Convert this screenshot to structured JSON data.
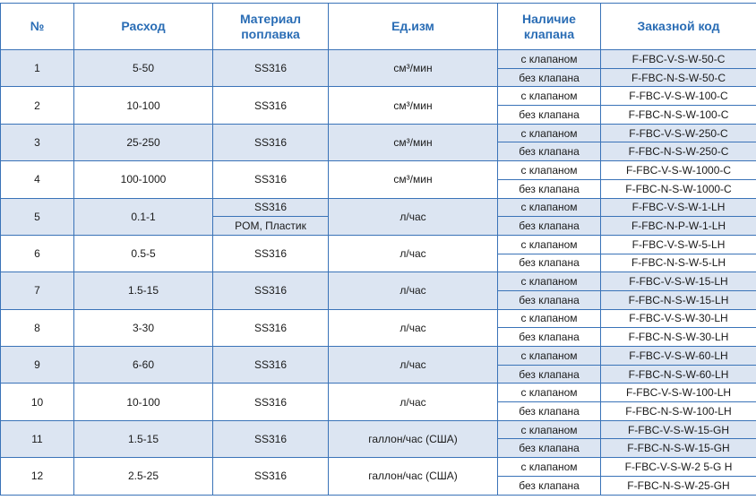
{
  "table": {
    "header": [
      "№",
      "Расход",
      "Материал поплавка",
      "Ед.изм",
      "Наличие клапана",
      "Заказной код"
    ],
    "rows": [
      {
        "no": "1",
        "flow": "5-50",
        "material": [
          "SS316"
        ],
        "unit": "см³/мин",
        "options": [
          {
            "valve": "с клапаном",
            "code": "F-FBC-V-S-W-50-C"
          },
          {
            "valve": "без клапана",
            "code": "F-FBC-N-S-W-50-C"
          }
        ]
      },
      {
        "no": "2",
        "flow": "10-100",
        "material": [
          "SS316"
        ],
        "unit": "см³/мин",
        "options": [
          {
            "valve": "с клапаном",
            "code": "F-FBC-V-S-W-100-C"
          },
          {
            "valve": "без клапана",
            "code": "F-FBC-N-S-W-100-C"
          }
        ]
      },
      {
        "no": "3",
        "flow": "25-250",
        "material": [
          "SS316"
        ],
        "unit": "см³/мин",
        "options": [
          {
            "valve": "с клапаном",
            "code": "F-FBC-V-S-W-250-C"
          },
          {
            "valve": "без клапана",
            "code": "F-FBC-N-S-W-250-C"
          }
        ]
      },
      {
        "no": "4",
        "flow": "100-1000",
        "material": [
          "SS316"
        ],
        "unit": "см³/мин",
        "options": [
          {
            "valve": "с клапаном",
            "code": "F-FBC-V-S-W-1000-C"
          },
          {
            "valve": "без клапана",
            "code": "F-FBC-N-S-W-1000-C"
          }
        ]
      },
      {
        "no": "5",
        "flow": "0.1-1",
        "material": [
          "SS316",
          "POM, Пластик"
        ],
        "unit": "л/час",
        "options": [
          {
            "valve": "с клапаном",
            "code": "F-FBC-V-S-W-1-LH"
          },
          {
            "valve": "без клапана",
            "code": "F-FBC-N-P-W-1-LH"
          }
        ]
      },
      {
        "no": "6",
        "flow": "0.5-5",
        "material": [
          "SS316"
        ],
        "unit": "л/час",
        "options": [
          {
            "valve": "с клапаном",
            "code": "F-FBC-V-S-W-5-LH"
          },
          {
            "valve": "без клапана",
            "code": "F-FBC-N-S-W-5-LH"
          }
        ]
      },
      {
        "no": "7",
        "flow": "1.5-15",
        "material": [
          "SS316"
        ],
        "unit": "л/час",
        "options": [
          {
            "valve": "с клапаном",
            "code": "F-FBC-V-S-W-15-LH"
          },
          {
            "valve": "без клапана",
            "code": "F-FBC-N-S-W-15-LH"
          }
        ]
      },
      {
        "no": "8",
        "flow": "3-30",
        "material": [
          "SS316"
        ],
        "unit": "л/час",
        "options": [
          {
            "valve": "с клапаном",
            "code": "F-FBC-V-S-W-30-LH"
          },
          {
            "valve": "без клапана",
            "code": "F-FBC-N-S-W-30-LH"
          }
        ]
      },
      {
        "no": "9",
        "flow": "6-60",
        "material": [
          "SS316"
        ],
        "unit": "л/час",
        "options": [
          {
            "valve": "с клапаном",
            "code": "F-FBC-V-S-W-60-LH"
          },
          {
            "valve": "без клапана",
            "code": "F-FBC-N-S-W-60-LH"
          }
        ]
      },
      {
        "no": "10",
        "flow": "10-100",
        "material": [
          "SS316"
        ],
        "unit": "л/час",
        "options": [
          {
            "valve": "с клапаном",
            "code": "F-FBC-V-S-W-100-LH"
          },
          {
            "valve": "без клапана",
            "code": "F-FBC-N-S-W-100-LH"
          }
        ]
      },
      {
        "no": "11",
        "flow": "1.5-15",
        "material": [
          "SS316"
        ],
        "unit": "галлон/час (США)",
        "options": [
          {
            "valve": "с клапаном",
            "code": "F-FBC-V-S-W-15-GH"
          },
          {
            "valve": "без клапана",
            "code": "F-FBC-N-S-W-15-GH"
          }
        ]
      },
      {
        "no": "12",
        "flow": "2.5-25",
        "material": [
          "SS316"
        ],
        "unit": "галлон/час (США)",
        "options": [
          {
            "valve": "с клапаном",
            "code": "F-FBC-V-S-W-2 5-G H"
          },
          {
            "valve": "без клапана",
            "code": "F-FBC-N-S-W-25-GH"
          }
        ]
      }
    ]
  }
}
